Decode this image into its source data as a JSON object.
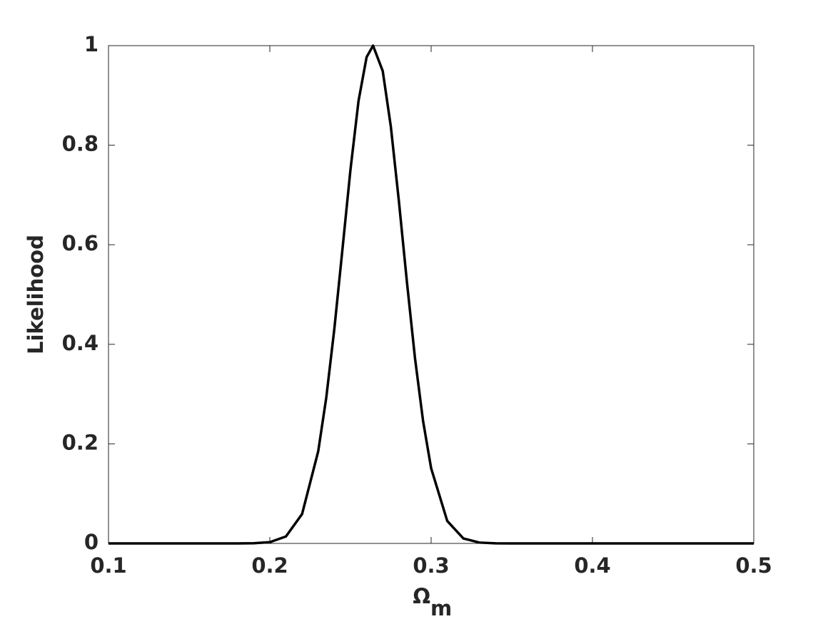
{
  "chart_data": {
    "type": "line",
    "xlabel": "Ω",
    "xlabel_subscript": "m",
    "ylabel": "Likelihood",
    "x": [
      0.1,
      0.15,
      0.18,
      0.19,
      0.2,
      0.21,
      0.22,
      0.23,
      0.235,
      0.24,
      0.245,
      0.25,
      0.255,
      0.26,
      0.264,
      0.27,
      0.275,
      0.28,
      0.285,
      0.29,
      0.295,
      0.3,
      0.31,
      0.32,
      0.33,
      0.34,
      0.35,
      0.4,
      0.45,
      0.5
    ],
    "series": [
      {
        "color": "#000000",
        "values": [
          0,
          0,
          0,
          0.0003,
          0.0025,
          0.014,
          0.059,
          0.185,
          0.293,
          0.431,
          0.59,
          0.751,
          0.889,
          0.977,
          1,
          0.949,
          0.838,
          0.688,
          0.525,
          0.372,
          0.246,
          0.151,
          0.045,
          0.01,
          0.0017,
          0.0002,
          0,
          0,
          0,
          0
        ]
      }
    ],
    "xlim": [
      0.1,
      0.5
    ],
    "xticks": [
      0.1,
      0.2,
      0.3,
      0.4,
      0.5
    ],
    "ylim": [
      0,
      1
    ],
    "yticks": [
      0,
      0.2,
      0.4,
      0.6,
      0.8,
      1
    ],
    "grid": false
  }
}
